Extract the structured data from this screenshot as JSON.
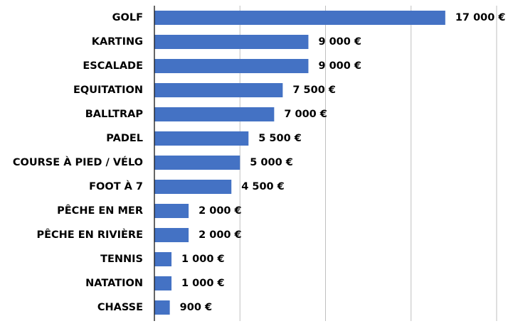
{
  "chart_data": {
    "type": "bar",
    "orientation": "horizontal",
    "title": "",
    "xlabel": "",
    "ylabel": "",
    "categories": [
      "GOLF",
      "KARTING",
      "ESCALADE",
      "EQUITATION",
      "BALLTRAP",
      "PADEL",
      "COURSE À PIED / VÉLO",
      "FOOT À 7",
      "PÊCHE EN MER",
      "PÊCHE EN RIVIÈRE",
      "TENNIS",
      "NATATION",
      "CHASSE"
    ],
    "values": [
      17000,
      9000,
      9000,
      7500,
      7000,
      5500,
      5000,
      4500,
      2000,
      2000,
      1000,
      1000,
      900
    ],
    "value_labels": [
      "17 000 €",
      "9 000 €",
      "9 000 €",
      "7 500 €",
      "7 000 €",
      "5 500 €",
      "5 000 €",
      "4 500 €",
      "2 000 €",
      "2 000 €",
      "1 000 €",
      "1 000 €",
      "900 €"
    ],
    "xlim": [
      0,
      20000
    ],
    "grid": "vertical",
    "legend": "none",
    "bar_color": "#4472C4",
    "grid_color": "#bfbfbf",
    "axis_color": "#000000"
  }
}
